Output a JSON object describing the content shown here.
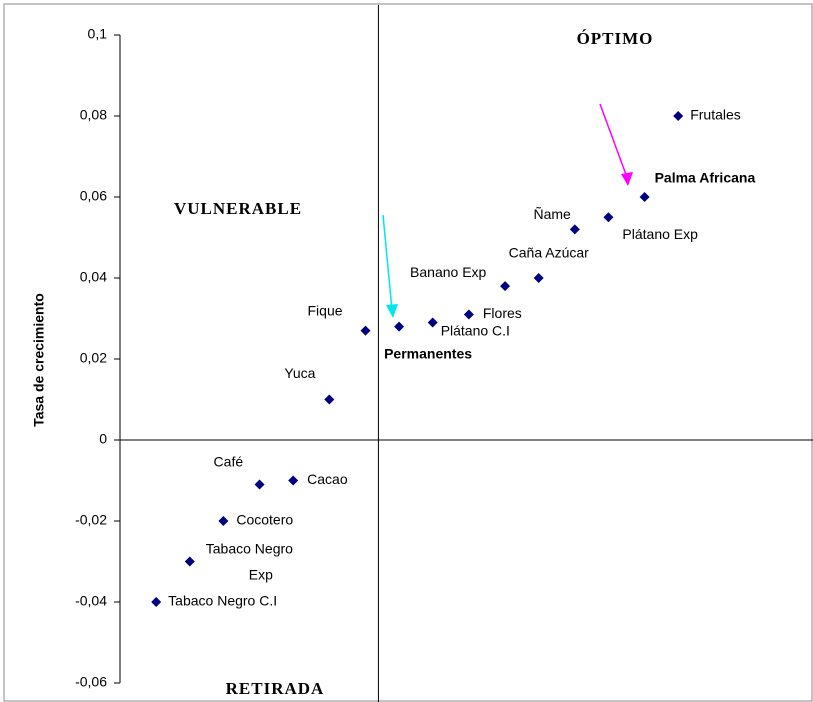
{
  "chart_data": {
    "type": "scatter",
    "y_axis_label": "Tasa de crecimiento",
    "annotations": {
      "top_right": "ÓPTIMO",
      "top_left": "VULNERABLE",
      "bottom_left": "RETIRADA"
    },
    "labels": [
      "Frutales",
      "Palma Africana",
      "Plátano Exp",
      "Ñame",
      "Caña Azúcar",
      "Banano Exp",
      "Flores",
      "Plátano C.I",
      "Permanentes",
      "Fique",
      "Yuca",
      "Cacao",
      "Café",
      "Cocotero",
      "Tabaco Negro Exp",
      "Tabaco Negro C.I"
    ],
    "x": [
      1.16,
      1.03,
      0.89,
      0.76,
      0.62,
      0.49,
      0.35,
      0.21,
      0.08,
      -0.05,
      -0.19,
      -0.33,
      -0.46,
      -0.6,
      -0.73,
      -0.86
    ],
    "values": [
      0.08,
      0.06,
      0.055,
      0.052,
      0.04,
      0.038,
      0.031,
      0.029,
      0.028,
      0.027,
      0.01,
      -0.01,
      -0.011,
      -0.02,
      -0.03,
      -0.04
    ],
    "color": "#000080",
    "label_colors": [
      "#000000",
      "#ff00ff",
      "#000000",
      "#000000",
      "#000000",
      "#000000",
      "#000000",
      "#000000",
      "#00e5ee",
      "#000000",
      "#000000",
      "#000000",
      "#000000",
      "#000000",
      "#000000",
      "#000000"
    ],
    "xlim": [
      -1,
      1.67
    ],
    "ylim": [
      -0.06,
      0.1
    ],
    "yticks": [
      {
        "value": 0.1,
        "label": "0,1"
      },
      {
        "value": 0.08,
        "label": "0,08"
      },
      {
        "value": 0.06,
        "label": "0,06"
      },
      {
        "value": 0.04,
        "label": "0,04"
      },
      {
        "value": 0.02,
        "label": "0,02"
      },
      0,
      {
        "value": -0.02,
        "label": "-0,02"
      },
      {
        "value": -0.04,
        "label": "-0,04"
      },
      {
        "value": -0.06,
        "label": "-0,06"
      }
    ]
  }
}
